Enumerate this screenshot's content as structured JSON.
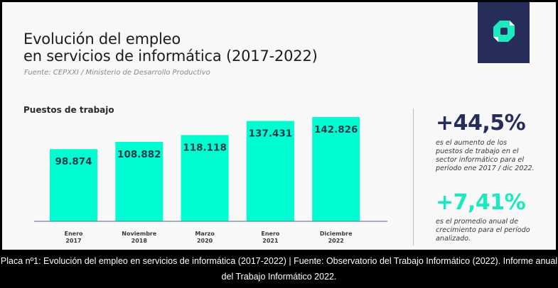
{
  "header": {
    "title_line1": "Evolución del empleo",
    "title_line2": "en servicios de informática (2017-2022)",
    "source": "Fuente: CEPXXI / Ministerio de Desarrollo Productivo",
    "logo_icon": "brand-logo-icon",
    "logo_bg_color": "#272d5b",
    "logo_fg_color": "#1de9bf"
  },
  "chart_data": {
    "type": "bar",
    "title": "Puestos de trabajo",
    "xlabel": "",
    "ylabel": "",
    "categories": [
      [
        "Enero",
        "2017"
      ],
      [
        "Noviembre",
        "2018"
      ],
      [
        "Marzo",
        "2020"
      ],
      [
        "Enero",
        "2021"
      ],
      [
        "Diciembre",
        "2022"
      ]
    ],
    "values": [
      98874,
      108882,
      118118,
      137431,
      142826
    ],
    "value_labels": [
      "98.874",
      "108.882",
      "118.118",
      "137.431",
      "142.826"
    ],
    "ylim": [
      0,
      145000
    ],
    "grid": false,
    "bar_color": "#00fdd2"
  },
  "stats": [
    {
      "value": "+44,5%",
      "description": "es el aumento de los puestos de trabajo en el sector informático para el período ene 2017 / dic 2022.",
      "color": "#272d5b"
    },
    {
      "value": "+7,41%",
      "description": "es el promedio anual de crecimiento para el período analizado.",
      "color": "#1de9bf"
    }
  ],
  "caption": "Placa nº1: Evolución del empleo en servicios de informática (2017-2022) | Fuente: Observatorio del Trabajo Informático (2022). Informe anual del Trabajo Informático 2022."
}
